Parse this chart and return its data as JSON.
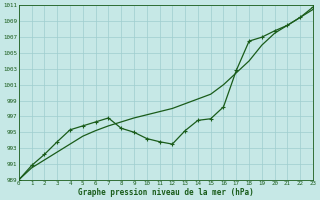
{
  "xlabel": "Graphe pression niveau de la mer (hPa)",
  "xlim": [
    0,
    23
  ],
  "ylim": [
    989,
    1011
  ],
  "yticks": [
    989,
    991,
    993,
    995,
    997,
    999,
    1001,
    1003,
    1005,
    1007,
    1009,
    1011
  ],
  "xticks": [
    0,
    1,
    2,
    3,
    4,
    5,
    6,
    7,
    8,
    9,
    10,
    11,
    12,
    13,
    14,
    15,
    16,
    17,
    18,
    19,
    20,
    21,
    22,
    23
  ],
  "background_color": "#c6e8e6",
  "grid_color": "#9ecece",
  "line_color": "#1a5c1a",
  "line1_x": [
    0,
    1,
    2,
    3,
    4,
    5,
    6,
    7,
    8,
    9,
    10,
    11,
    12,
    13,
    14,
    15,
    16,
    17,
    18,
    19,
    20,
    21,
    22,
    23
  ],
  "line1_y": [
    989.0,
    990.5,
    991.5,
    992.5,
    993.5,
    994.5,
    995.2,
    995.8,
    996.3,
    996.8,
    997.2,
    997.6,
    998.0,
    998.6,
    999.2,
    999.8,
    1001.0,
    1002.5,
    1004.0,
    1006.0,
    1007.5,
    1008.5,
    1009.5,
    1010.5
  ],
  "line2_x": [
    0,
    1,
    2,
    3,
    4,
    5,
    6,
    7,
    8,
    9,
    10,
    11,
    12,
    13,
    14,
    15,
    16,
    17,
    18,
    19,
    20,
    21,
    22,
    23
  ],
  "line2_y": [
    989.0,
    990.8,
    992.2,
    993.8,
    995.3,
    995.8,
    996.3,
    996.8,
    995.5,
    995.0,
    994.2,
    993.8,
    993.5,
    995.2,
    996.5,
    996.7,
    998.2,
    1002.8,
    1006.5,
    1007.0,
    1007.8,
    1008.5,
    1009.5,
    1010.8
  ],
  "font_color": "#1a5c1a",
  "marker": "+",
  "marker_size": 3,
  "linewidth": 0.9
}
